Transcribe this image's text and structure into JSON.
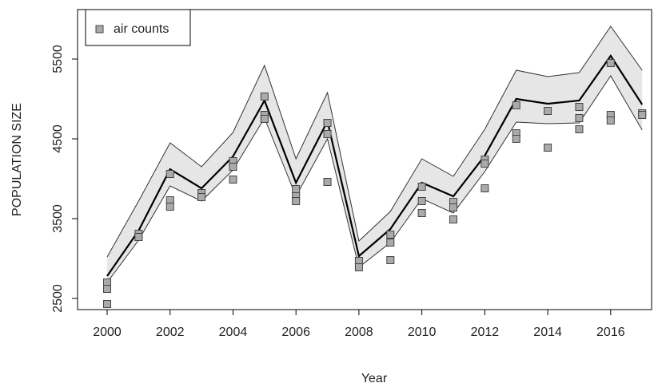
{
  "chart_data": {
    "type": "line",
    "x_label": "Year",
    "y_label": "POPULATION SIZE",
    "x": [
      2000,
      2001,
      2002,
      2003,
      2004,
      2005,
      2006,
      2007,
      2008,
      2009,
      2010,
      2011,
      2012,
      2013,
      2014,
      2015,
      2016,
      2017
    ],
    "series": [
      {
        "color": "#000000",
        "values": [
          2780,
          3350,
          4120,
          3880,
          4280,
          4980,
          3950,
          4720,
          3030,
          3370,
          3950,
          3780,
          4290,
          5000,
          4940,
          4980,
          5540,
          4930
        ]
      }
    ],
    "band": {
      "color": "#e6e6e6",
      "upper": [
        3020,
        3720,
        4450,
        4150,
        4580,
        5420,
        4250,
        5080,
        3220,
        3590,
        4250,
        4030,
        4620,
        5360,
        5280,
        5330,
        5910,
        5360
      ],
      "lower": [
        2700,
        3230,
        3910,
        3720,
        4110,
        4760,
        3780,
        4500,
        2890,
        3200,
        3750,
        3570,
        4090,
        4710,
        4690,
        4700,
        5290,
        4610
      ]
    },
    "points": {
      "type": "scatter",
      "name": "air counts",
      "color": "#aaaaaa",
      "x": [
        2000,
        2000,
        2000,
        2001,
        2001,
        2002,
        2002,
        2002,
        2003,
        2003,
        2004,
        2004,
        2004,
        2005,
        2005,
        2005,
        2006,
        2006,
        2006,
        2007,
        2007,
        2007,
        2008,
        2008,
        2009,
        2009,
        2009,
        2010,
        2010,
        2010,
        2011,
        2011,
        2011,
        2012,
        2012,
        2012,
        2013,
        2013,
        2013,
        2014,
        2014,
        2015,
        2015,
        2015,
        2016,
        2016,
        2016,
        2017,
        2017
      ],
      "y": [
        2700,
        2620,
        2430,
        3310,
        3270,
        4060,
        3730,
        3650,
        3820,
        3770,
        4220,
        4150,
        3990,
        5030,
        4800,
        4750,
        3870,
        3780,
        3720,
        4700,
        4560,
        3960,
        2970,
        2890,
        3300,
        3200,
        2980,
        3900,
        3720,
        3570,
        3710,
        3640,
        3490,
        4240,
        4190,
        3880,
        4920,
        4570,
        4500,
        4850,
        4390,
        4900,
        4760,
        4620,
        5450,
        4800,
        4730,
        4820,
        4800
      ]
    },
    "xlim": [
      1999.06,
      2017.3
    ],
    "ylim": [
      2360,
      6120
    ],
    "xticks": [
      2000,
      2002,
      2004,
      2006,
      2008,
      2010,
      2012,
      2014,
      2016
    ],
    "yticks": [
      2500,
      3500,
      4500,
      5500
    ],
    "legend": "top-left"
  }
}
